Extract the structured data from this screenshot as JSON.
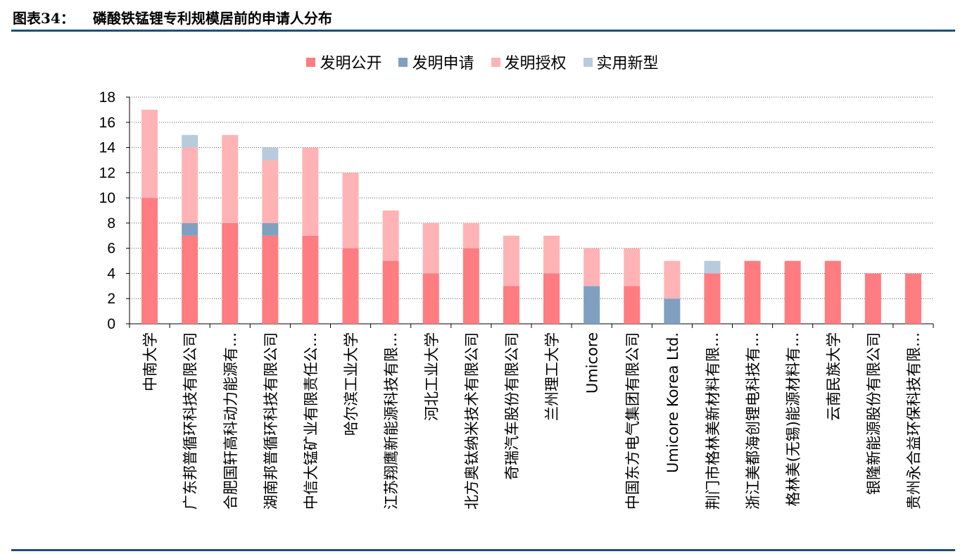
{
  "header": {
    "label": "图表34：",
    "title": "磷酸铁锰锂专利规模居前的申请人分布"
  },
  "chart_data": {
    "type": "bar",
    "stacked": true,
    "categories": [
      "中南大学",
      "广东邦普循环科技有限公司",
      "合肥国轩高科动力能源有…",
      "湖南邦普循环科技有限公司",
      "中信大锰矿业有限责任公…",
      "哈尔滨工业大学",
      "江苏翔鹰新能源科技有限…",
      "河北工业大学",
      "北方奥钛纳米技术有限公司",
      "奇瑞汽车股份有限公司",
      "兰州理工大学",
      "Umicore",
      "中国东方电气集团有限公司",
      "Umicore Korea Ltd.",
      "荆门市格林美新材料有限…",
      "浙江美都海创锂电科技有…",
      "格林美(无锡)能源材料有…",
      "云南民族大学",
      "银隆新能源股份有限公司",
      "贵州永合益环保科技有限…"
    ],
    "series": [
      {
        "name": "发明公开",
        "color": "#ff7c80",
        "values": [
          10,
          7,
          8,
          7,
          7,
          6,
          5,
          4,
          6,
          3,
          4,
          0,
          3,
          0,
          4,
          5,
          5,
          5,
          4,
          4
        ]
      },
      {
        "name": "发明申请",
        "color": "#7fa1bf",
        "values": [
          0,
          1,
          0,
          1,
          0,
          0,
          0,
          0,
          0,
          0,
          0,
          3,
          0,
          2,
          0,
          0,
          0,
          0,
          0,
          0
        ]
      },
      {
        "name": "发明授权",
        "color": "#ffb3b5",
        "values": [
          7,
          6,
          7,
          5,
          7,
          6,
          4,
          4,
          2,
          4,
          3,
          3,
          3,
          3,
          0,
          0,
          0,
          0,
          0,
          0
        ]
      },
      {
        "name": "实用新型",
        "color": "#b8cbdc",
        "values": [
          0,
          1,
          0,
          1,
          0,
          0,
          0,
          0,
          0,
          0,
          0,
          0,
          0,
          0,
          1,
          0,
          0,
          0,
          0,
          0
        ]
      }
    ],
    "yticks": [
      "0",
      "2",
      "4",
      "6",
      "8",
      "10",
      "12",
      "14",
      "16",
      "18"
    ],
    "ylim": [
      0,
      18
    ],
    "legend_position": "top-center",
    "grid": "horizontal-dotted"
  }
}
